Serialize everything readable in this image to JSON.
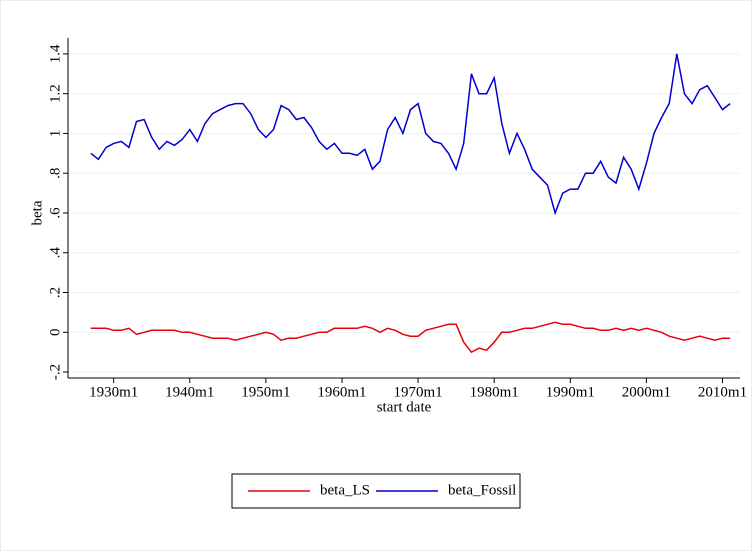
{
  "chart_data": {
    "type": "line",
    "y_label": "beta",
    "x_label": "start date",
    "x": [
      1927,
      1928,
      1929,
      1930,
      1931,
      1932,
      1933,
      1934,
      1935,
      1936,
      1937,
      1938,
      1939,
      1940,
      1941,
      1942,
      1943,
      1944,
      1945,
      1946,
      1947,
      1948,
      1949,
      1950,
      1951,
      1952,
      1953,
      1954,
      1955,
      1956,
      1957,
      1958,
      1959,
      1960,
      1961,
      1962,
      1963,
      1964,
      1965,
      1966,
      1967,
      1968,
      1969,
      1970,
      1971,
      1972,
      1973,
      1974,
      1975,
      1976,
      1977,
      1978,
      1979,
      1980,
      1981,
      1982,
      1983,
      1984,
      1985,
      1986,
      1987,
      1988,
      1989,
      1990,
      1991,
      1992,
      1993,
      1994,
      1995,
      1996,
      1997,
      1998,
      1999,
      2000,
      2001,
      2002,
      2003,
      2004,
      2005,
      2006,
      2007,
      2008,
      2009,
      2010,
      2011
    ],
    "series": [
      {
        "name": "beta_LS",
        "color": "#e8000b",
        "values": [
          0.02,
          0.02,
          0.02,
          0.01,
          0.01,
          0.02,
          -0.01,
          0.0,
          0.01,
          0.01,
          0.01,
          0.01,
          0.0,
          0.0,
          -0.01,
          -0.02,
          -0.03,
          -0.03,
          -0.03,
          -0.04,
          -0.03,
          -0.02,
          -0.01,
          0.0,
          -0.01,
          -0.04,
          -0.03,
          -0.03,
          -0.02,
          -0.01,
          0.0,
          0.0,
          0.02,
          0.02,
          0.02,
          0.02,
          0.03,
          0.02,
          0.0,
          0.02,
          0.01,
          -0.01,
          -0.02,
          -0.02,
          0.01,
          0.02,
          0.03,
          0.04,
          0.04,
          -0.05,
          -0.1,
          -0.08,
          -0.09,
          -0.05,
          0.0,
          0.0,
          0.01,
          0.02,
          0.02,
          0.03,
          0.04,
          0.05,
          0.04,
          0.04,
          0.03,
          0.02,
          0.02,
          0.01,
          0.01,
          0.02,
          0.01,
          0.02,
          0.01,
          0.02,
          0.01,
          0.0,
          -0.02,
          -0.03,
          -0.04,
          -0.03,
          -0.02,
          -0.03,
          -0.04,
          -0.03,
          -0.03
        ]
      },
      {
        "name": "beta_Fossil",
        "color": "#0000d0",
        "values": [
          0.9,
          0.87,
          0.93,
          0.95,
          0.96,
          0.93,
          1.06,
          1.07,
          0.98,
          0.92,
          0.96,
          0.94,
          0.97,
          1.02,
          0.96,
          1.05,
          1.1,
          1.12,
          1.14,
          1.15,
          1.15,
          1.1,
          1.02,
          0.98,
          1.02,
          1.14,
          1.12,
          1.07,
          1.08,
          1.03,
          0.96,
          0.92,
          0.95,
          0.9,
          0.9,
          0.89,
          0.92,
          0.82,
          0.86,
          1.02,
          1.08,
          1.0,
          1.12,
          1.15,
          1.0,
          0.96,
          0.95,
          0.9,
          0.82,
          0.95,
          1.3,
          1.2,
          1.2,
          1.28,
          1.05,
          0.9,
          1.0,
          0.92,
          0.82,
          0.78,
          0.74,
          0.6,
          0.7,
          0.72,
          0.72,
          0.8,
          0.8,
          0.86,
          0.78,
          0.75,
          0.88,
          0.82,
          0.72,
          0.85,
          1.0,
          1.08,
          1.15,
          1.4,
          1.2,
          1.15,
          1.22,
          1.24,
          1.18,
          1.12,
          1.15
        ]
      }
    ],
    "xlim": [
      1924,
      2012.3
    ],
    "xticks": [
      {
        "value": 1930,
        "label": "1930m1"
      },
      {
        "value": 1940,
        "label": "1940m1"
      },
      {
        "value": 1950,
        "label": "1950m1"
      },
      {
        "value": 1960,
        "label": "1960m1"
      },
      {
        "value": 1970,
        "label": "1970m1"
      },
      {
        "value": 1980,
        "label": "1980m1"
      },
      {
        "value": 1990,
        "label": "1990m1"
      },
      {
        "value": 2000,
        "label": "2000m1"
      },
      {
        "value": 2010,
        "label": "2010m1"
      }
    ],
    "ylim": [
      -0.23,
      1.48
    ],
    "yticks": [
      {
        "value": -0.2,
        "label": "-.2"
      },
      0,
      {
        "value": 0.2,
        "label": ".2"
      },
      {
        "value": 0.4,
        "label": ".4"
      },
      {
        "value": 0.6,
        "label": ".6"
      },
      {
        "value": 0.8,
        "label": ".8"
      },
      1,
      1.2,
      1.4
    ],
    "grid": true,
    "legend": "bottom"
  }
}
